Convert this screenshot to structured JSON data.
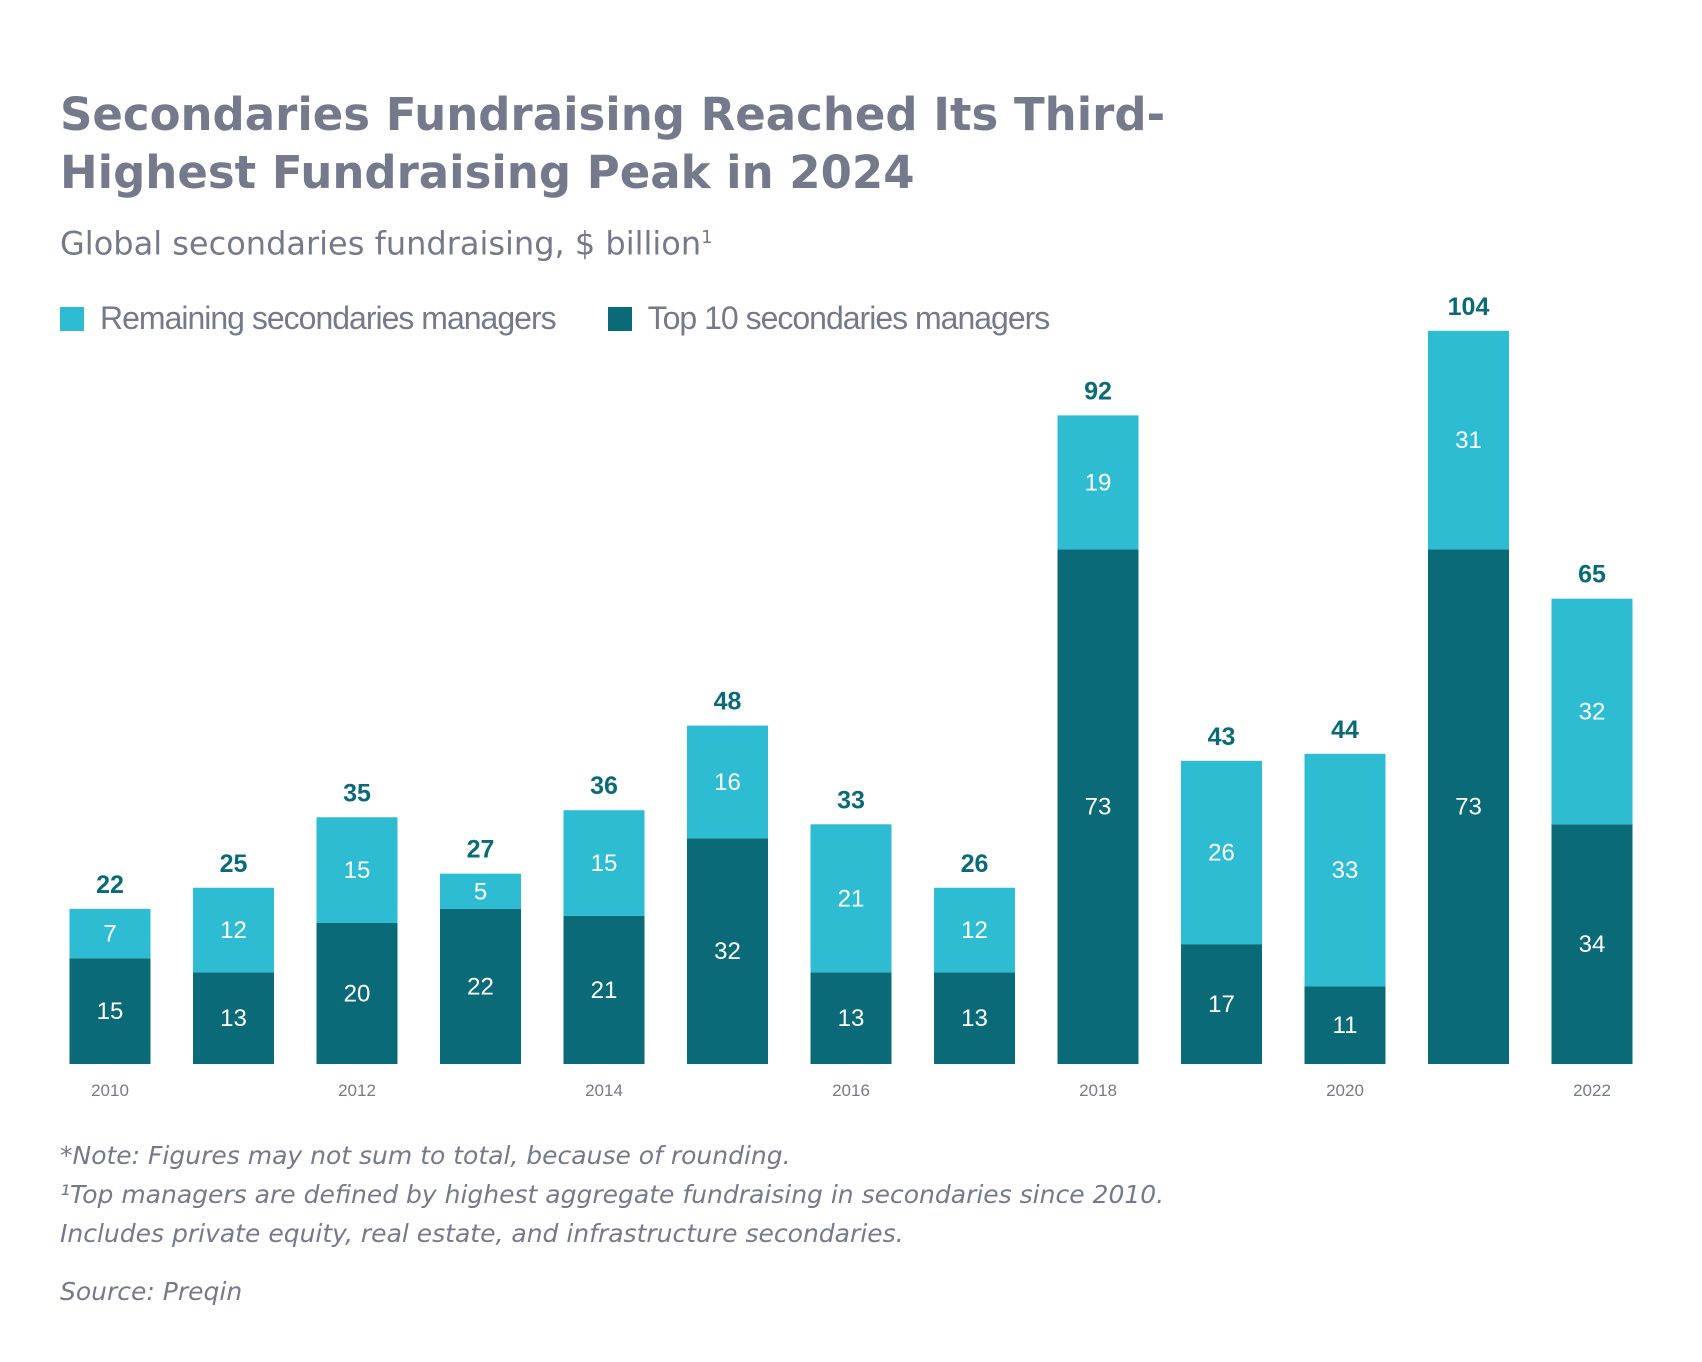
{
  "header": {
    "title": "Secondaries Fundraising Reached Its Third-Highest Fundraising Peak in 2024",
    "subtitle": "Global secondaries fundraising, $ billion",
    "subtitle_footnote_mark": "1"
  },
  "legend": {
    "remaining_label": "Remaining secondaries managers",
    "top10_label": "Top 10 secondaries managers"
  },
  "colors": {
    "remaining": "#2ebcd3",
    "top10": "#0b6a78",
    "text_gray": "#747a8b"
  },
  "chart_data": {
    "type": "bar",
    "stacked": true,
    "title": "Secondaries Fundraising Reached Its Third-Highest Fundraising Peak in 2024",
    "ylabel": "$ billion",
    "xlabel": "",
    "categories": [
      "2010",
      "2011",
      "2012",
      "2013",
      "2014",
      "2015",
      "2016",
      "2017",
      "2018",
      "2019",
      "2020",
      "2021",
      "2022"
    ],
    "tick_labels": [
      "2010",
      "",
      "2012",
      "",
      "2014",
      "",
      "2016",
      "",
      "2018",
      "",
      "2020",
      "",
      "2022"
    ],
    "series": [
      {
        "name": "Top 10 secondaries managers",
        "values": [
          15,
          13,
          20,
          22,
          21,
          32,
          13,
          13,
          73,
          17,
          11,
          73,
          34
        ]
      },
      {
        "name": "Remaining secondaries managers",
        "values": [
          7,
          12,
          15,
          5,
          15,
          16,
          21,
          12,
          19,
          26,
          33,
          31,
          32
        ]
      }
    ],
    "totals": [
      22,
      25,
      35,
      27,
      36,
      48,
      33,
      26,
      92,
      43,
      44,
      104,
      65
    ],
    "ylim": [
      0,
      110
    ],
    "grid": false,
    "legend_position": "top-left"
  },
  "footnotes": {
    "note": "*Note: Figures may not sum to total, because of rounding.",
    "line1": "¹Top managers are defined by highest aggregate fundraising in secondaries since 2010.",
    "line2": "Includes private equity, real estate, and infrastructure secondaries.",
    "source": "Source: Preqin"
  }
}
